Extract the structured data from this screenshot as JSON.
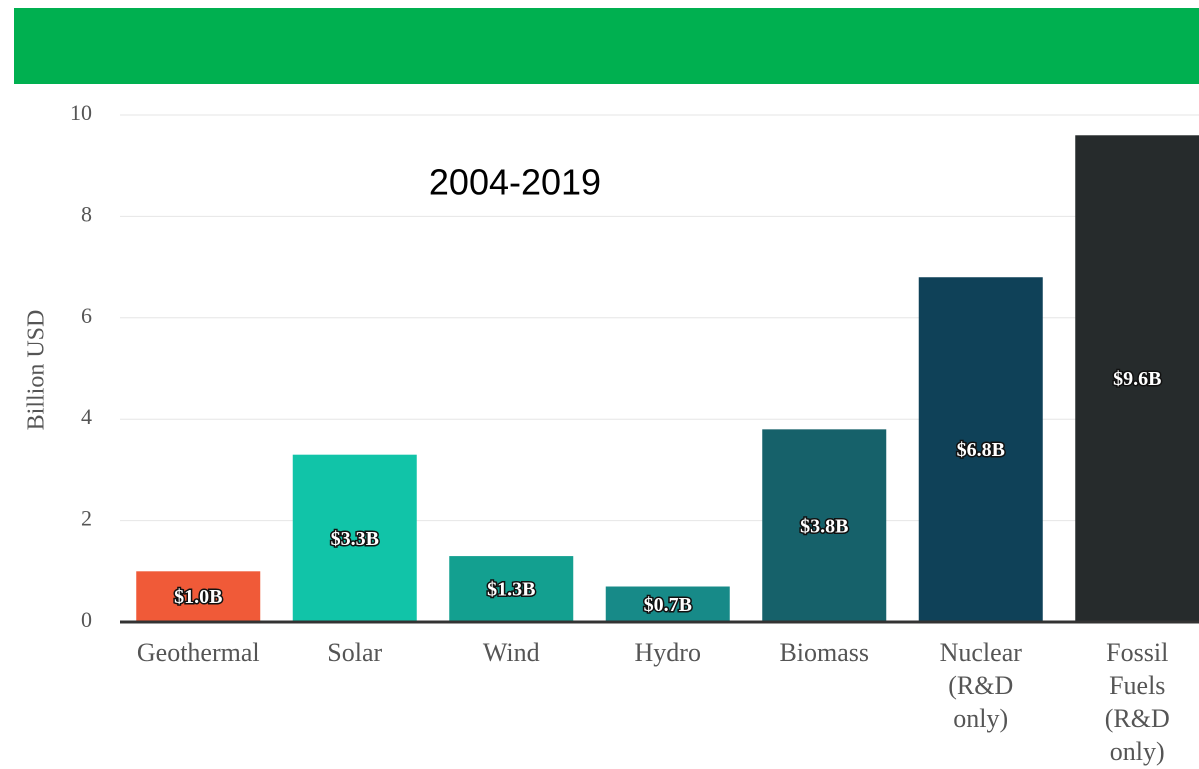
{
  "chart_data": {
    "type": "bar",
    "annotation": "2004-2019",
    "y_label": "Billion USD",
    "categories": [
      "Geothermal",
      "Solar",
      "Wind",
      "Hydro",
      "Biomass",
      "Nuclear (R&D only)",
      "Fossil Fuels (R&D only)"
    ],
    "values": [
      1.0,
      3.3,
      1.3,
      0.7,
      3.8,
      6.8,
      9.6
    ],
    "value_labels": [
      "$1.0B",
      "$3.3B",
      "$1.3B",
      "$0.7B",
      "$3.8B",
      "$6.8B",
      "$9.6B"
    ],
    "colors": [
      "#f05a38",
      "#11c4a8",
      "#13a090",
      "#178a88",
      "#16616a",
      "#0f4158",
      "#262b2c"
    ],
    "ylim": [
      0,
      10
    ],
    "yticks": [
      0,
      2,
      4,
      6,
      8,
      10
    ],
    "grid": true
  }
}
